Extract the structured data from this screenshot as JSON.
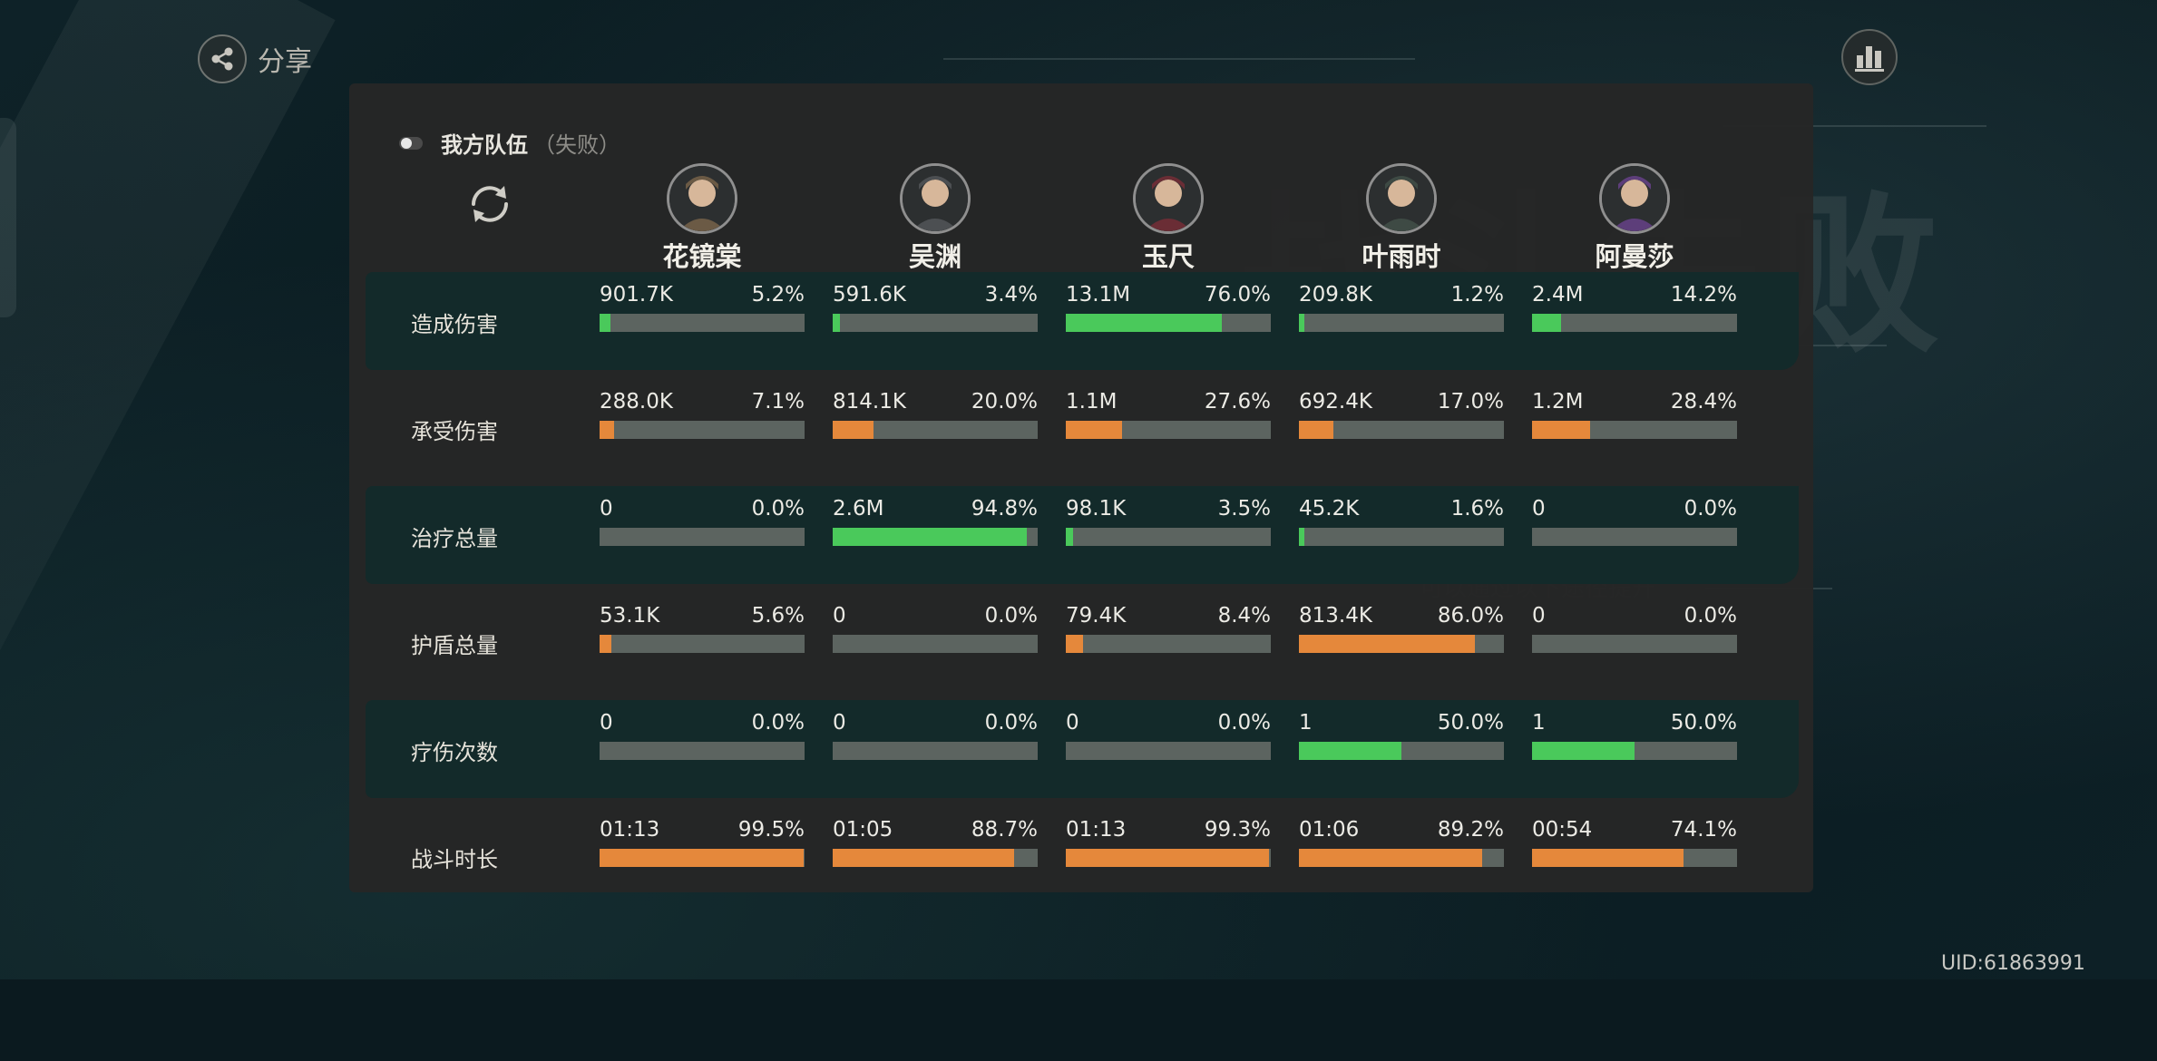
{
  "share": {
    "label": "分享"
  },
  "team": {
    "name": "我方队伍",
    "status": "（失败）"
  },
  "uid": "UID:61863991",
  "heroes": [
    {
      "name": "花镜棠",
      "avatar_color": "#6b5a45"
    },
    {
      "name": "吴渊",
      "avatar_color": "#4c4f52"
    },
    {
      "name": "玉尺",
      "avatar_color": "#6a2d35"
    },
    {
      "name": "叶雨时",
      "avatar_color": "#3e4a44"
    },
    {
      "name": "阿曼莎",
      "avatar_color": "#5d3e7a"
    }
  ],
  "colors": {
    "green": "#4ac95b",
    "orange": "#e5883b",
    "track": "#5c6460"
  },
  "stats": [
    {
      "label": "造成伤害",
      "color": "green",
      "teal": true,
      "cells": [
        {
          "value": "901.7K",
          "pct": "5.2%",
          "fill": 0.052
        },
        {
          "value": "591.6K",
          "pct": "3.4%",
          "fill": 0.034
        },
        {
          "value": "13.1M",
          "pct": "76.0%",
          "fill": 0.76
        },
        {
          "value": "209.8K",
          "pct": "1.2%",
          "fill": 0.012
        },
        {
          "value": "2.4M",
          "pct": "14.2%",
          "fill": 0.142
        }
      ]
    },
    {
      "label": "承受伤害",
      "color": "orange",
      "teal": false,
      "cells": [
        {
          "value": "288.0K",
          "pct": "7.1%",
          "fill": 0.071
        },
        {
          "value": "814.1K",
          "pct": "20.0%",
          "fill": 0.2
        },
        {
          "value": "1.1M",
          "pct": "27.6%",
          "fill": 0.276
        },
        {
          "value": "692.4K",
          "pct": "17.0%",
          "fill": 0.17
        },
        {
          "value": "1.2M",
          "pct": "28.4%",
          "fill": 0.284
        }
      ]
    },
    {
      "label": "治疗总量",
      "color": "green",
      "teal": true,
      "cells": [
        {
          "value": "0",
          "pct": "0.0%",
          "fill": 0
        },
        {
          "value": "2.6M",
          "pct": "94.8%",
          "fill": 0.948
        },
        {
          "value": "98.1K",
          "pct": "3.5%",
          "fill": 0.035
        },
        {
          "value": "45.2K",
          "pct": "1.6%",
          "fill": 0.016
        },
        {
          "value": "0",
          "pct": "0.0%",
          "fill": 0
        }
      ]
    },
    {
      "label": "护盾总量",
      "color": "orange",
      "teal": false,
      "cells": [
        {
          "value": "53.1K",
          "pct": "5.6%",
          "fill": 0.056
        },
        {
          "value": "0",
          "pct": "0.0%",
          "fill": 0
        },
        {
          "value": "79.4K",
          "pct": "8.4%",
          "fill": 0.084
        },
        {
          "value": "813.4K",
          "pct": "86.0%",
          "fill": 0.86
        },
        {
          "value": "0",
          "pct": "0.0%",
          "fill": 0
        }
      ]
    },
    {
      "label": "疗伤次数",
      "color": "green",
      "teal": true,
      "cells": [
        {
          "value": "0",
          "pct": "0.0%",
          "fill": 0
        },
        {
          "value": "0",
          "pct": "0.0%",
          "fill": 0
        },
        {
          "value": "0",
          "pct": "0.0%",
          "fill": 0
        },
        {
          "value": "1",
          "pct": "50.0%",
          "fill": 0.5
        },
        {
          "value": "1",
          "pct": "50.0%",
          "fill": 0.5
        }
      ]
    },
    {
      "label": "战斗时长",
      "color": "orange",
      "teal": false,
      "cells": [
        {
          "value": "01:13",
          "pct": "99.5%",
          "fill": 0.995
        },
        {
          "value": "01:05",
          "pct": "88.7%",
          "fill": 0.887
        },
        {
          "value": "01:13",
          "pct": "99.3%",
          "fill": 0.993
        },
        {
          "value": "01:06",
          "pct": "89.2%",
          "fill": 0.892
        },
        {
          "value": "00:54",
          "pct": "74.1%",
          "fill": 0.741
        }
      ]
    }
  ]
}
